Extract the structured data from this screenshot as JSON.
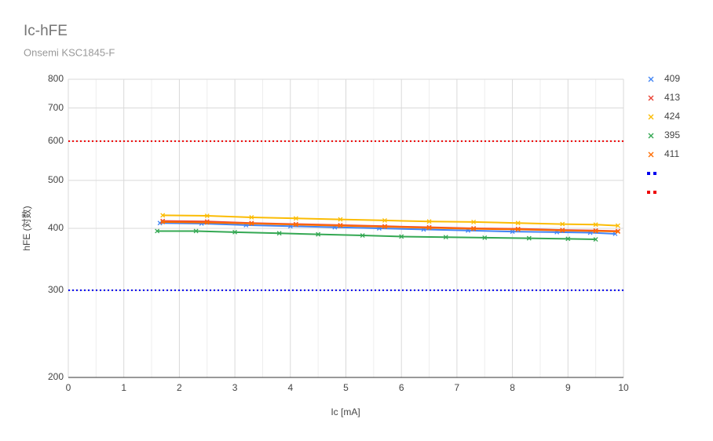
{
  "chart_data": {
    "type": "scatter",
    "title": "Ic-hFE",
    "subtitle": "Onsemi KSC1845-F",
    "x_label": "Ic [mA]",
    "y_label": "hFE (対数)",
    "xlim": [
      0,
      10
    ],
    "xticks": [
      0,
      1,
      2,
      3,
      4,
      5,
      6,
      7,
      8,
      9,
      10
    ],
    "x_minor_grid": [
      0.5,
      1.5,
      2.5,
      3.5,
      4.5,
      5.5,
      6.5,
      7.5,
      8.5,
      9.5
    ],
    "ylim": [
      200,
      800
    ],
    "yticks": [
      200,
      300,
      400,
      500,
      600,
      700,
      800
    ],
    "log_y": true,
    "grid": true,
    "legend": "right",
    "series": [
      {
        "name": "409",
        "color": "#4285f4",
        "x": [
          1.65,
          2.4,
          3.2,
          4.0,
          4.8,
          5.6,
          6.4,
          7.2,
          8.0,
          8.8,
          9.4,
          9.85
        ],
        "values": [
          410,
          409,
          406,
          404,
          402,
          400,
          398,
          396,
          394,
          393,
          392,
          390
        ]
      },
      {
        "name": "413",
        "color": "#ea4335",
        "x": [
          1.7,
          2.5,
          3.3,
          4.1,
          4.9,
          5.7,
          6.5,
          7.3,
          8.1,
          8.9,
          9.5,
          9.9
        ],
        "values": [
          414,
          413,
          410,
          408,
          406,
          404,
          402,
          400,
          399,
          397,
          396,
          395
        ]
      },
      {
        "name": "424",
        "color": "#fbbc04",
        "x": [
          1.7,
          2.5,
          3.3,
          4.1,
          4.9,
          5.7,
          6.5,
          7.3,
          8.1,
          8.9,
          9.5,
          9.9
        ],
        "values": [
          425,
          424,
          421,
          419,
          417,
          415,
          413,
          412,
          410,
          408,
          407,
          405
        ]
      },
      {
        "name": "395",
        "color": "#34a853",
        "x": [
          1.6,
          2.3,
          3.0,
          3.8,
          4.5,
          5.3,
          6.0,
          6.8,
          7.5,
          8.3,
          9.0,
          9.5
        ],
        "values": [
          395,
          395,
          393,
          391,
          389,
          387,
          385,
          384,
          383,
          382,
          381,
          380
        ]
      },
      {
        "name": "411",
        "color": "#ff6d01",
        "x": [
          1.7,
          2.5,
          3.3,
          4.1,
          4.9,
          5.7,
          6.5,
          7.3,
          8.1,
          8.9,
          9.5,
          9.9
        ],
        "values": [
          412,
          411,
          409,
          407,
          405,
          403,
          401,
          399,
          398,
          396,
          395,
          394
        ]
      },
      {
        "color": "#0000ee",
        "dashed": true,
        "x": [
          0,
          10
        ],
        "values": [
          300,
          300
        ]
      },
      {
        "color": "#ee0000",
        "dashed": true,
        "x": [
          0,
          10
        ],
        "values": [
          600,
          600
        ]
      }
    ]
  }
}
